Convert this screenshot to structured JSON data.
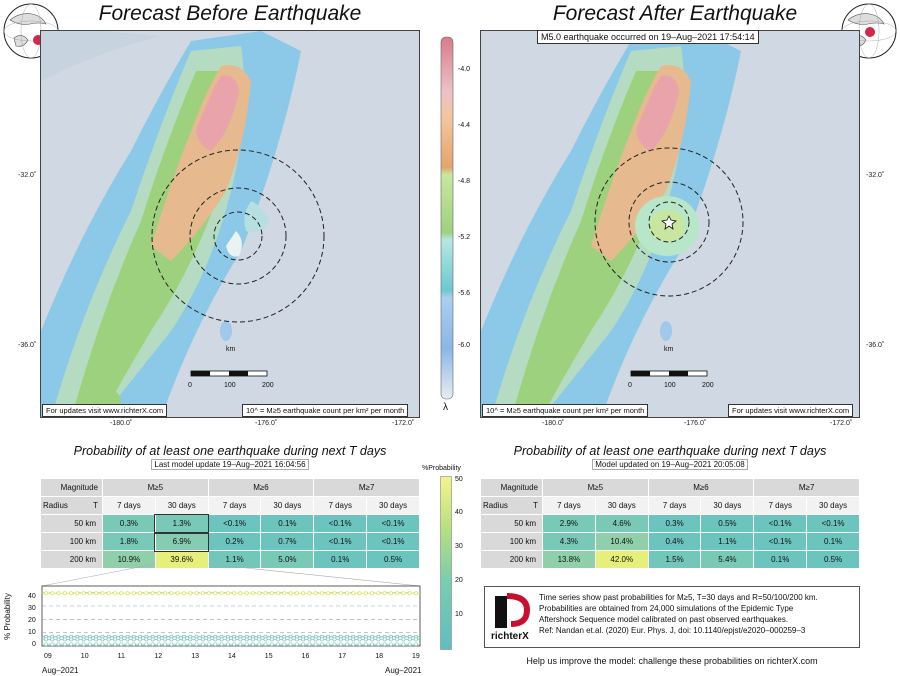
{
  "left_panel": {
    "title": "Forecast Before Earthquake",
    "lat_labels": [
      "-32.0˚",
      "-36.0˚"
    ],
    "lon_labels": [
      "-180.0˚",
      "-176.0˚",
      "-172.0˚"
    ],
    "km_label": "km",
    "scale_ticks": [
      "0",
      "100",
      "200"
    ],
    "note_updates": "For updates visit www.richterX.com",
    "note_units": "10^ = M≥5 earthquake count per km² per month"
  },
  "right_panel": {
    "title": "Forecast After Earthquake",
    "event_banner": "M5.0 earthquake occurred on 19–Aug–2021 17:54:14",
    "lat_labels": [
      "-32.0˚",
      "-36.0˚"
    ],
    "lon_labels": [
      "-180.0˚",
      "-176.0˚",
      "-172.0˚"
    ],
    "km_label": "km",
    "scale_ticks": [
      "0",
      "100",
      "200"
    ],
    "note_updates": "For updates visit www.richterX.com",
    "note_units": "10^ = M≥5 earthquake count per km² per month"
  },
  "lambda_colorbar": {
    "ticks": [
      "-4.0",
      "-4.4",
      "-4.8",
      "-5.2",
      "-5.6",
      "-6.0"
    ],
    "symbol": "λ"
  },
  "prob_colorbar": {
    "title": "%Probability",
    "ticks": [
      "50",
      "40",
      "30",
      "20",
      "10"
    ]
  },
  "left_table": {
    "heading": "Probability of at least one earthquake during next T days",
    "subheading": "Last model update 19–Aug–2021 16:04:56",
    "col_magnitude": "Magnitude",
    "col_radius": "Radius",
    "col_T": "T",
    "mags": [
      "M≥5",
      "M≥6",
      "M≥7"
    ],
    "periods": [
      "7 days",
      "30 days",
      "7 days",
      "30 days",
      "7 days",
      "30 days"
    ],
    "rows": [
      {
        "radius": "50 km",
        "cells": [
          "0.3%",
          "1.3%",
          "<0.1%",
          "0.1%",
          "<0.1%",
          "<0.1%"
        ]
      },
      {
        "radius": "100 km",
        "cells": [
          "1.8%",
          "6.9%",
          "0.2%",
          "0.7%",
          "<0.1%",
          "<0.1%"
        ]
      },
      {
        "radius": "200 km",
        "cells": [
          "10.9%",
          "39.6%",
          "1.1%",
          "5.0%",
          "0.1%",
          "0.5%"
        ]
      }
    ]
  },
  "right_table": {
    "heading": "Probability of at least one earthquake during next T days",
    "subheading": "Model updated on 19–Aug–2021 20:05:08",
    "col_magnitude": "Magnitude",
    "col_radius": "Radius",
    "col_T": "T",
    "mags": [
      "M≥5",
      "M≥6",
      "M≥7"
    ],
    "periods": [
      "7 days",
      "30 days",
      "7 days",
      "30 days",
      "7 days",
      "30 days"
    ],
    "rows": [
      {
        "radius": "50 km",
        "cells": [
          "2.9%",
          "4.6%",
          "0.3%",
          "0.5%",
          "<0.1%",
          "<0.1%"
        ]
      },
      {
        "radius": "100 km",
        "cells": [
          "4.3%",
          "10.4%",
          "0.4%",
          "1.1%",
          "<0.1%",
          "0.1%"
        ]
      },
      {
        "radius": "200 km",
        "cells": [
          "13.8%",
          "42.0%",
          "1.5%",
          "5.4%",
          "0.1%",
          "0.5%"
        ]
      }
    ]
  },
  "timeseries": {
    "ylabel": "% Probability",
    "yticks": [
      "0",
      "10",
      "20",
      "30",
      "40"
    ],
    "xticks": [
      "09",
      "10",
      "11",
      "12",
      "13",
      "14",
      "15",
      "16",
      "17",
      "18",
      "19"
    ],
    "start_label": "Aug–2021",
    "end_label": "Aug–2021",
    "series_levels": [
      39.6,
      6.9,
      5.0,
      1.3
    ]
  },
  "info": {
    "logo_text": "richterX",
    "lines": [
      "Time series show past probabilities for M≥5, T=30 days and R=50/100/200 km.",
      "Probabilities are obtained from 24,000 simulations of the Epidemic Type",
      "Aftershock Sequence model calibrated on past observed earthquakes.",
      "Ref: Nandan et.al. (2020) Eur. Phys. J, doi: 10.1140/epjst/e2020–000259–3"
    ],
    "improve": "Help us improve the model: challenge these probabilities on richterX.com"
  },
  "colors": {
    "cell_low": "#5fc0bc",
    "cell_mid": "#8fd0b0",
    "cell_high": "#e6ef7a"
  }
}
